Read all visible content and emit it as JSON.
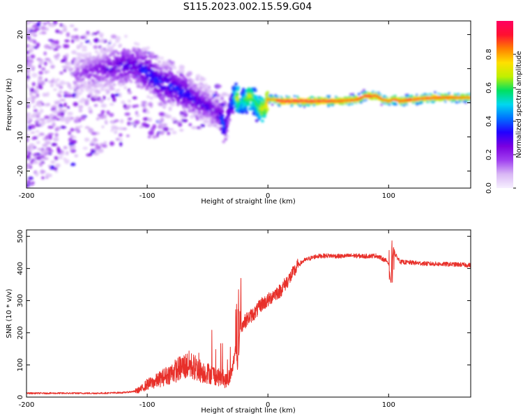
{
  "title": "S115.2023.002.15.59.G04",
  "colors": {
    "snr_line": "#e8302a",
    "axis": "#000000",
    "background": "#ffffff",
    "colormap": [
      "#f7f0ff",
      "#d9b8f5",
      "#a040f0",
      "#7a00e0",
      "#2200ff",
      "#0070ff",
      "#00d8f0",
      "#00e060",
      "#c0f000",
      "#ffe000",
      "#ff8000",
      "#ff1030",
      "#ff0060"
    ]
  },
  "chart_data": [
    {
      "type": "heatmap",
      "panel": "top",
      "xlabel": "Height of straight line (km)",
      "ylabel": "Frequency (Hz)",
      "xlim": [
        -200,
        168
      ],
      "ylim": [
        -25,
        24
      ],
      "xticks": [
        -200,
        -100,
        0,
        100
      ],
      "xtick_labels": [
        "-200",
        "-100",
        "0",
        "100"
      ],
      "yticks": [
        -20,
        -10,
        0,
        10,
        20
      ],
      "ytick_labels": [
        "-20",
        "-10",
        "0",
        "10",
        "20"
      ],
      "colorbar": {
        "label": "Normalized spectral amplitude",
        "range": [
          0,
          1
        ],
        "ticks": [
          0.0,
          0.2,
          0.4,
          0.6,
          0.8
        ],
        "tick_labels": [
          "0.0",
          "0.2",
          "0.4",
          "0.6",
          "0.8"
        ]
      },
      "ridge": {
        "x": [
          -200,
          -170,
          -150,
          -135,
          -120,
          -110,
          -100,
          -90,
          -80,
          -70,
          -60,
          -50,
          -45,
          -40,
          -37,
          -35,
          -32,
          -28,
          -25,
          -22,
          -18,
          -15,
          -12,
          -8,
          -5,
          -2,
          0,
          5,
          10,
          20,
          40,
          60,
          75,
          80,
          85,
          90,
          95,
          100,
          105,
          110,
          120,
          140,
          168
        ],
        "freq": [
          0,
          6,
          9,
          10,
          11,
          11,
          9,
          6,
          5,
          3,
          1,
          -1,
          -2,
          -4,
          -6,
          -7,
          -2,
          2,
          1,
          0,
          1,
          2,
          1,
          -1,
          -2,
          -1,
          1,
          1,
          0.5,
          0.5,
          0.5,
          0.5,
          1,
          2,
          2,
          2,
          1,
          0.5,
          1,
          0.5,
          1,
          1.5,
          1.5
        ],
        "amplitude": [
          0.1,
          0.15,
          0.2,
          0.25,
          0.3,
          0.3,
          0.35,
          0.35,
          0.35,
          0.35,
          0.3,
          0.3,
          0.25,
          0.3,
          0.45,
          0.35,
          0.3,
          0.5,
          0.7,
          0.5,
          0.6,
          0.7,
          0.6,
          0.6,
          0.7,
          0.7,
          0.85,
          0.8,
          0.95,
          0.95,
          0.95,
          0.9,
          0.9,
          0.9,
          0.95,
          0.9,
          0.85,
          0.85,
          0.9,
          0.9,
          0.9,
          0.9,
          0.85
        ]
      }
    },
    {
      "type": "line",
      "panel": "bottom",
      "xlabel": "Height of straight line (km)",
      "ylabel": "SNR (10 * v/v)",
      "xlim": [
        -200,
        168
      ],
      "ylim": [
        0,
        520
      ],
      "xticks": [
        -200,
        -100,
        0,
        100
      ],
      "xtick_labels": [
        "-200",
        "-100",
        "0",
        "100"
      ],
      "yticks": [
        0,
        100,
        200,
        300,
        400,
        500
      ],
      "ytick_labels": [
        "0",
        "100",
        "200",
        "300",
        "400",
        "500"
      ],
      "series": [
        {
          "x": [
            -200,
            -180,
            -160,
            -140,
            -120,
            -110,
            -105,
            -100,
            -95,
            -90,
            -85,
            -80,
            -75,
            -70,
            -65,
            -60,
            -55,
            -50,
            -45,
            -40,
            -35,
            -30,
            -27,
            -25,
            -23,
            -20,
            -18,
            -15,
            -10,
            -5,
            0,
            5,
            10,
            15,
            20,
            25,
            30,
            40,
            50,
            60,
            70,
            80,
            90,
            95,
            100,
            102,
            104,
            106,
            110,
            120,
            130,
            140,
            150,
            160,
            168
          ],
          "y": [
            12,
            12,
            12,
            12,
            14,
            18,
            25,
            40,
            45,
            55,
            65,
            75,
            85,
            95,
            100,
            90,
            80,
            75,
            70,
            60,
            50,
            70,
            150,
            90,
            220,
            230,
            240,
            250,
            265,
            290,
            300,
            320,
            330,
            355,
            380,
            410,
            425,
            438,
            440,
            438,
            440,
            438,
            440,
            430,
            420,
            350,
            460,
            440,
            420,
            418,
            415,
            414,
            413,
            412,
            410
          ]
        }
      ]
    }
  ]
}
